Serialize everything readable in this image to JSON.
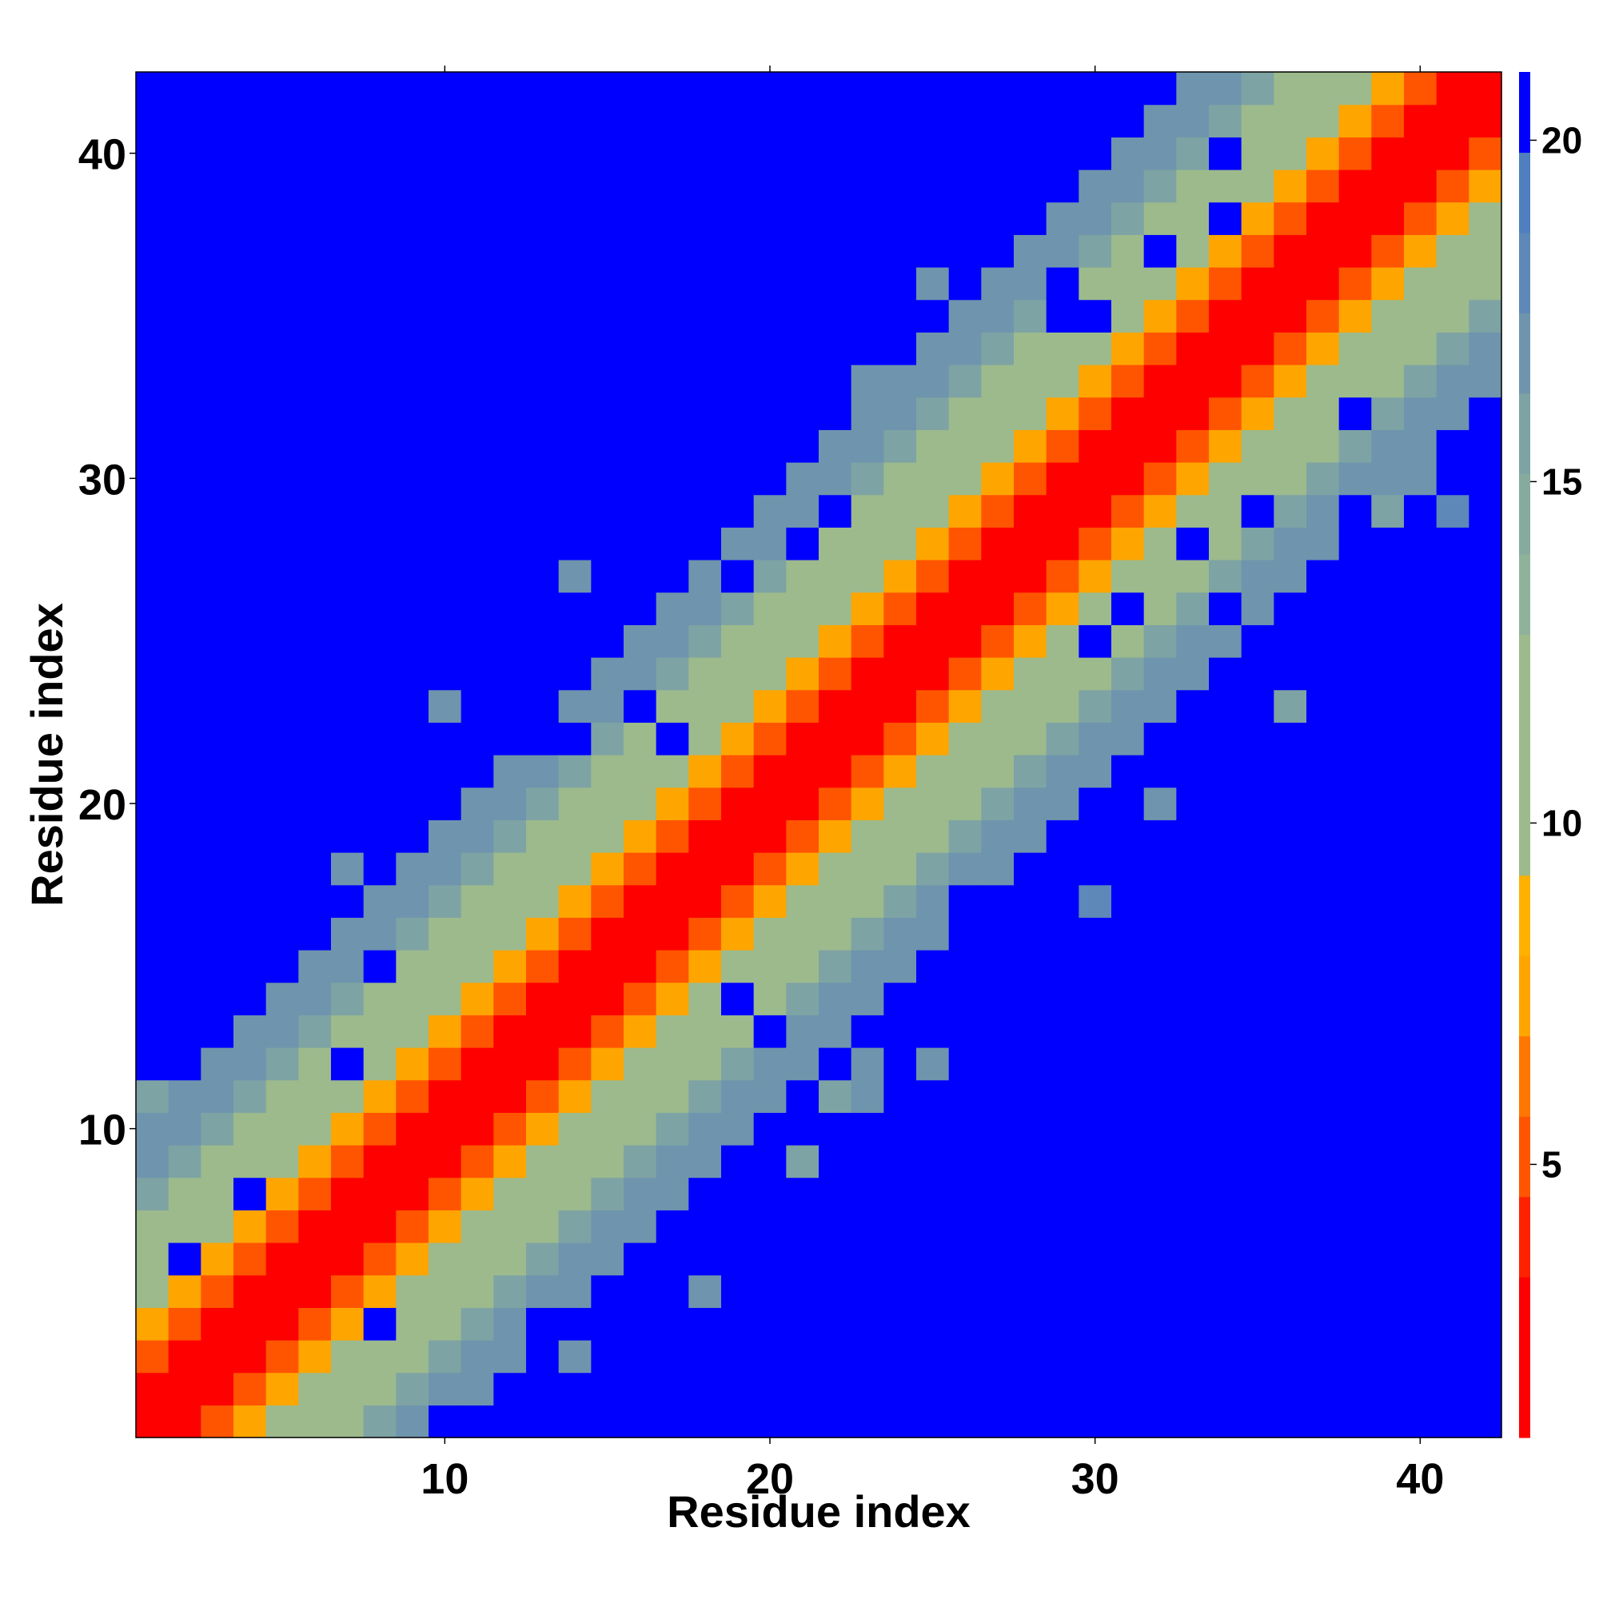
{
  "chart_data": {
    "type": "heatmap",
    "title": "",
    "xlabel": "Residue index",
    "ylabel": "Residue index",
    "x_range": [
      1,
      42
    ],
    "y_range": [
      1,
      42
    ],
    "x_ticks": [
      10,
      20,
      30,
      40
    ],
    "y_ticks": [
      10,
      20,
      30,
      40
    ],
    "colorbar": {
      "ticks": [
        5,
        10,
        15,
        20
      ],
      "range": [
        1,
        21
      ],
      "levels": [
        "#ff0000",
        "#ff0000",
        "#ff2200",
        "#ff5500",
        "#ff7700",
        "#ffa500",
        "#ffb000",
        "#9cba8c",
        "#9cba8c",
        "#9cba8c",
        "#8fb29a",
        "#86ab9e",
        "#7ea3a4",
        "#6e95ad",
        "#5e88b8",
        "#4f7fbf",
        "#0000ff"
      ]
    },
    "colors": {
      "far": "#0000ff",
      "near": "#ff0000"
    },
    "grid": false,
    "legend": "right colorbar",
    "matrix_description": "Symmetric-like residue contact distance map: near-diagonal values ~1-2 (red), band of orange ~5-7, green ~10-12, blue-grey ~16-19, far entries ~21 (blue)."
  }
}
